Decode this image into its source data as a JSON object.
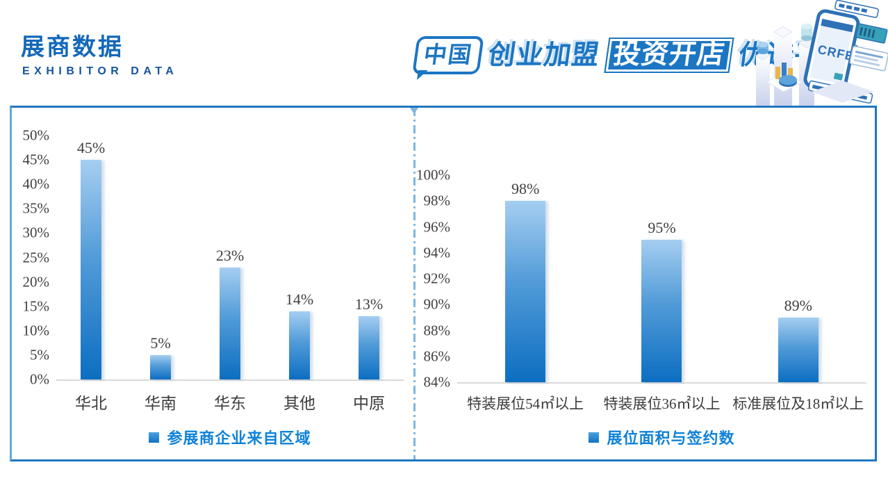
{
  "header": {
    "title": "展商数据",
    "subtitle": "EXHIBITOR DATA",
    "slogan": {
      "bubble": "中国",
      "text1": "创业加盟",
      "highlight": "投资开店",
      "text2": "优选平台!"
    },
    "illustration": {
      "label": "CRFE"
    }
  },
  "colors": {
    "brand_blue": "#1c76c3",
    "title_blue": "#1368ba",
    "legend_blue": "#1082d8",
    "bar_gradient_top": "#a5cef1",
    "bar_gradient_bottom": "#0c6ec1",
    "divider_blue": "#7cb6e3",
    "axis_text": "#404040",
    "baseline_gray": "#d9d9d9"
  },
  "chart_data": [
    {
      "type": "bar",
      "title": "参展商企业来自区域",
      "categories": [
        "华北",
        "华南",
        "华东",
        "其他",
        "中原"
      ],
      "values": [
        45,
        5,
        23,
        14,
        13
      ],
      "labels": [
        "45%",
        "5%",
        "23%",
        "14%",
        "13%"
      ],
      "yticks": [
        "50%",
        "45%",
        "40%",
        "35%",
        "30%",
        "25%",
        "20%",
        "15%",
        "10%",
        "5%",
        "0%"
      ],
      "ylim": [
        0,
        50
      ],
      "grid": false,
      "legend": "参展商企业来自区域",
      "legend_position": "bottom-center"
    },
    {
      "type": "bar",
      "title": "展位面积与签约数",
      "categories": [
        "特装展位54㎡以上",
        "特装展位36㎡以上",
        "标准展位及18㎡以上"
      ],
      "values": [
        98,
        95,
        89
      ],
      "labels": [
        "98%",
        "95%",
        "89%"
      ],
      "yticks": [
        "100%",
        "98%",
        "96%",
        "94%",
        "92%",
        "90%",
        "88%",
        "86%",
        "84%"
      ],
      "ylim": [
        84,
        100
      ],
      "grid": false,
      "legend": "展位面积与签约数",
      "legend_position": "bottom-center"
    }
  ]
}
